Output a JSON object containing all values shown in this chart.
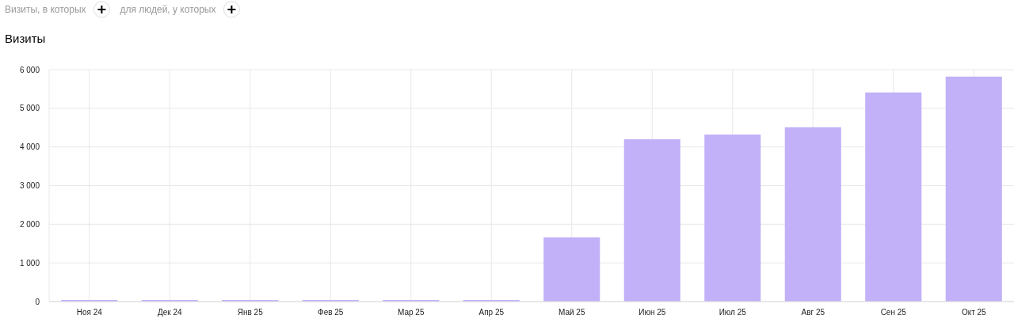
{
  "chart_data": {
    "type": "bar",
    "title": "Визиты",
    "annotations": [
      "Визиты, в которых",
      "для людей, у которых"
    ],
    "categories": [
      "Ноя 24",
      "Дек 24",
      "Янв 25",
      "Фев 25",
      "Мар 25",
      "Апр 25",
      "Май 25",
      "Июн 25",
      "Июл 25",
      "Авг 25",
      "Сен 25",
      "Окт 25"
    ],
    "values": [
      40,
      40,
      40,
      40,
      40,
      40,
      1660,
      4200,
      4320,
      4510,
      5410,
      5820
    ],
    "color": "#c2b0f8",
    "ylim": [
      0,
      6000
    ],
    "yticks": [
      {
        "value": 0,
        "label": "0"
      },
      {
        "value": 1000,
        "label": "1 000"
      },
      {
        "value": 2000,
        "label": "2 000"
      },
      {
        "value": 3000,
        "label": "3 000"
      },
      {
        "value": 4000,
        "label": "4 000"
      },
      {
        "value": 5000,
        "label": "5 000"
      },
      {
        "value": 6000,
        "label": "6 000"
      }
    ],
    "grid": true
  }
}
